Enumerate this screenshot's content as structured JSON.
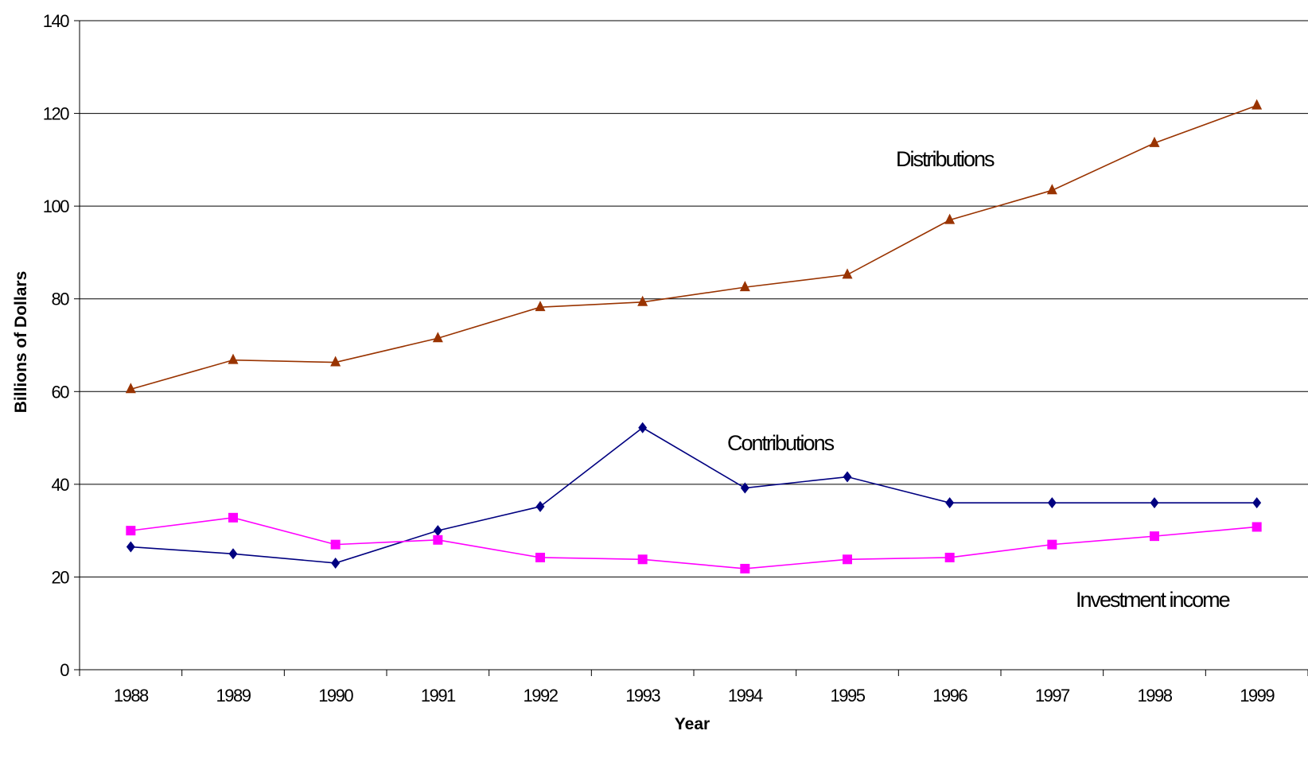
{
  "chart_data": {
    "type": "line",
    "title": "",
    "xlabel": "Year",
    "ylabel": "Billions of Dollars",
    "categories": [
      "1988",
      "1989",
      "1990",
      "1991",
      "1992",
      "1993",
      "1994",
      "1995",
      "1996",
      "1997",
      "1998",
      "1999"
    ],
    "ylim": [
      0,
      140
    ],
    "yticks": [
      0,
      20,
      40,
      60,
      80,
      100,
      120,
      140
    ],
    "grid": true,
    "legend": "none",
    "series": [
      {
        "key": "distributions",
        "values": [
          60.5,
          66.8,
          66.3,
          71.5,
          78.2,
          79.3,
          82.5,
          85.2,
          97.0,
          103.4,
          113.6,
          121.7
        ],
        "color": "#993300",
        "marker": "triangle"
      },
      {
        "key": "contributions",
        "values": [
          26.5,
          25.0,
          23.0,
          30.0,
          35.2,
          52.2,
          39.2,
          41.6,
          36.0,
          36.0,
          36.0,
          36.0
        ],
        "color": "#000080",
        "marker": "diamond"
      },
      {
        "key": "investment_income",
        "values": [
          30.0,
          32.8,
          27.0,
          28.0,
          24.2,
          23.8,
          21.8,
          23.8,
          24.2,
          27.0,
          28.8,
          30.8
        ],
        "color": "#FF00FF",
        "marker": "square"
      }
    ],
    "annotations": [
      {
        "text": "Distributions",
        "series": "distributions"
      },
      {
        "text": "Contributions",
        "series": "contributions"
      },
      {
        "text": "Investment income",
        "series": "investment_income"
      }
    ]
  }
}
